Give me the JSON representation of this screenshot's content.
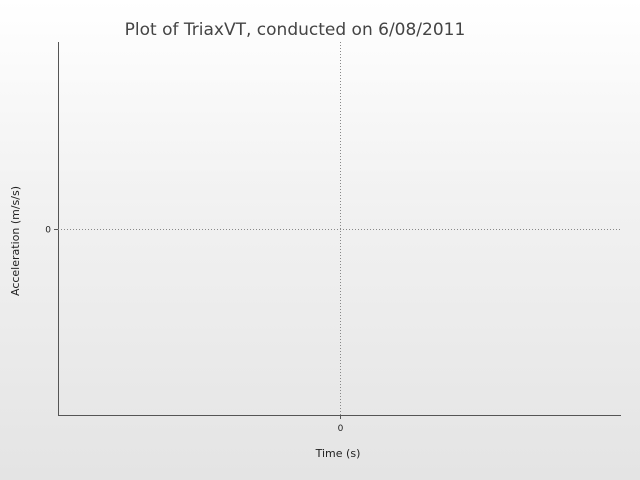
{
  "chart_data": {
    "type": "line",
    "title": "Plot of TriaxVT, conducted on 6/08/2011",
    "xlabel": "Time (s)",
    "ylabel": "Acceleration (m/s/s)",
    "x_ticks": [
      0
    ],
    "y_ticks": [
      0
    ],
    "xlim": [
      -1,
      1
    ],
    "ylim": [
      -1,
      1
    ],
    "series": [],
    "grid": false,
    "zero_lines": true,
    "axis_color": "#555555",
    "zero_line_color": "#888888"
  }
}
